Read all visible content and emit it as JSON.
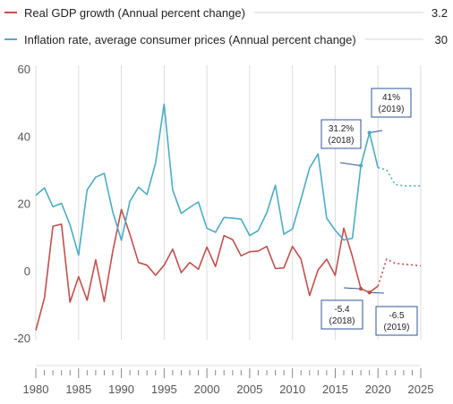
{
  "chart_data": {
    "type": "line",
    "title": "",
    "xlabel": "",
    "ylabel": "",
    "xlim": [
      1980,
      2025
    ],
    "ylim": [
      -20,
      60
    ],
    "grid": true,
    "legend_position": "top",
    "x_ticks": [
      "1980",
      "1985",
      "1990",
      "1995",
      "2000",
      "2005",
      "2010",
      "2015",
      "2020",
      "2025"
    ],
    "y_ticks": [
      "60",
      "40",
      "20",
      "0",
      "-20"
    ],
    "x": [
      1980,
      1981,
      1982,
      1983,
      1984,
      1985,
      1986,
      1987,
      1988,
      1989,
      1990,
      1991,
      1992,
      1993,
      1994,
      1995,
      1996,
      1997,
      1998,
      1999,
      2000,
      2001,
      2002,
      2003,
      2004,
      2005,
      2006,
      2007,
      2008,
      2009,
      2010,
      2011,
      2012,
      2013,
      2014,
      2015,
      2016,
      2017,
      2018,
      2019,
      2020,
      2021,
      2022,
      2023,
      2024,
      2025
    ],
    "series": [
      {
        "name": "Real GDP growth (Annual percent change)",
        "legend_value": "3.2",
        "color": "#c0504d",
        "values": [
          -17.8,
          -8.2,
          13.2,
          13.8,
          -9.4,
          -1.8,
          -8.8,
          3.2,
          -9.2,
          5.8,
          18.2,
          10.8,
          2.4,
          1.6,
          -1.4,
          1.6,
          6.4,
          -0.6,
          2.4,
          0.4,
          7,
          1.2,
          10.4,
          9.2,
          4.4,
          5.6,
          5.8,
          7.2,
          0.6,
          0.8,
          7.2,
          3.4,
          -7.4,
          0.2,
          3.4,
          -1.4,
          12.6,
          4.2,
          -5.4,
          -6.5,
          -4.6,
          3.4,
          2.2,
          1.9,
          1.7,
          1.4
        ],
        "projection_from": 2020
      },
      {
        "name": "Inflation rate, average consumer prices (Annual percent change)",
        "legend_value": "30",
        "color": "#4bacc6",
        "values": [
          22.4,
          24.6,
          19.0,
          20.0,
          13.6,
          4.6,
          24.0,
          27.8,
          28.9,
          17.4,
          9.0,
          20.6,
          24.8,
          22.6,
          32.0,
          49.5,
          24.0,
          17.0,
          18.8,
          20.4,
          12.6,
          11.4,
          15.8,
          15.6,
          15.3,
          10.4,
          11.9,
          17.2,
          25.4,
          10.8,
          12.4,
          21.2,
          30.5,
          34.7,
          15.6,
          12.0,
          9.1,
          9.6,
          31.2,
          41,
          30.6,
          30,
          25.6,
          25.2,
          25.2,
          25.2
        ],
        "projection_from": 2020
      }
    ],
    "annotations": [
      {
        "text": "31.2%\n(2018)",
        "series": 1,
        "x": 2018,
        "y": 31.2
      },
      {
        "text": "41%\n(2019)",
        "series": 1,
        "x": 2019,
        "y": 41
      },
      {
        "text": "-5.4\n(2018)",
        "series": 0,
        "x": 2018,
        "y": -5.4
      },
      {
        "text": "-6.5\n(2019)",
        "series": 0,
        "x": 2019,
        "y": -6.5
      }
    ]
  }
}
